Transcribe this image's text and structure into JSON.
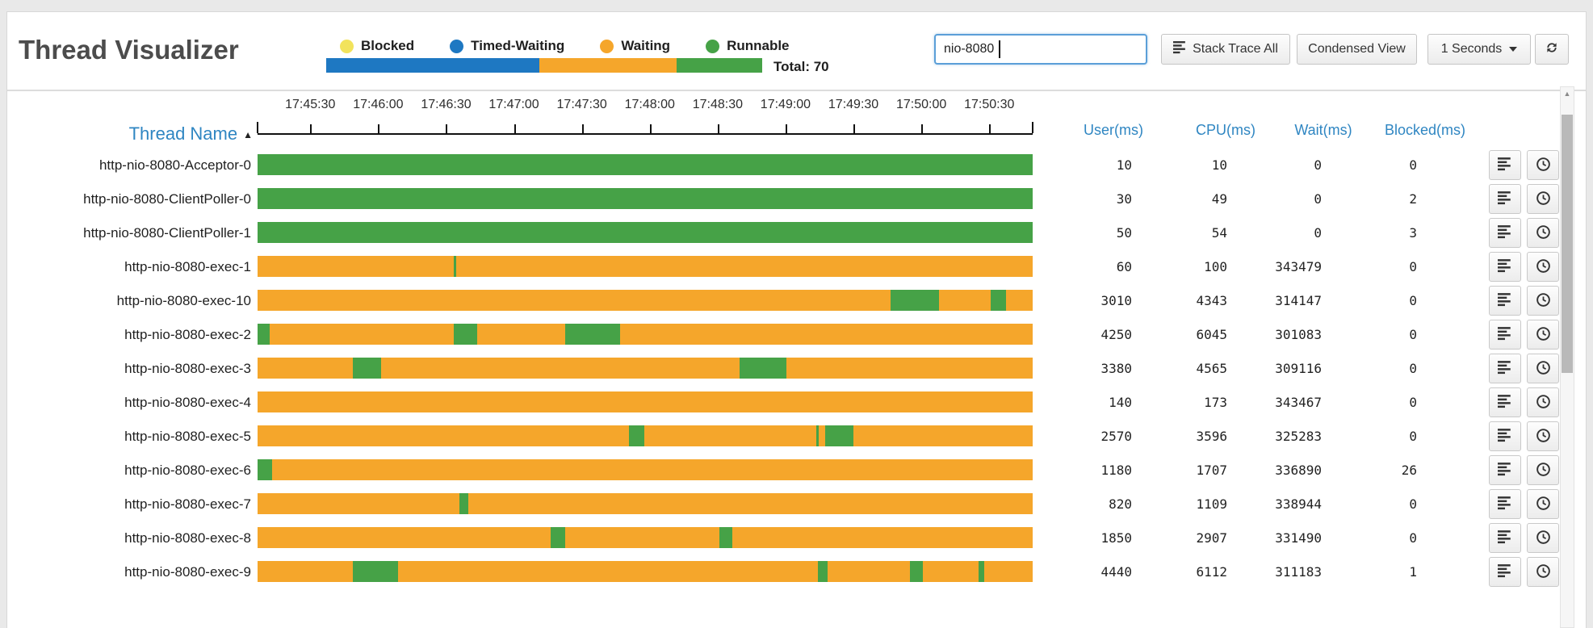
{
  "app": {
    "title": "Thread Visualizer"
  },
  "legend": {
    "items": [
      {
        "label": "Blocked",
        "color": "#f2e35c"
      },
      {
        "label": "Timed-Waiting",
        "color": "#1e78c2"
      },
      {
        "label": "Waiting",
        "color": "#f5a62b"
      },
      {
        "label": "Runnable",
        "color": "#46a247"
      }
    ],
    "distribution_bar": {
      "segments": [
        {
          "state": "Timed-Waiting",
          "color": "#1e78c2",
          "percent": 48.9
        },
        {
          "state": "Waiting",
          "color": "#f5a62b",
          "percent": 31.5
        },
        {
          "state": "Runnable",
          "color": "#46a247",
          "percent": 19.6
        }
      ]
    },
    "total_label": "Total: 70"
  },
  "toolbar": {
    "search": {
      "value": "nio-8080"
    },
    "buttons": {
      "stack_trace_all": "Stack Trace All",
      "condensed_view": "Condensed View",
      "interval": "1 Seconds"
    },
    "icons": [
      "align-left-icon",
      "caret-down-icon",
      "refresh-icon"
    ]
  },
  "timeline": {
    "tick_labels": [
      "17:45:30",
      "17:46:00",
      "17:46:30",
      "17:47:00",
      "17:47:30",
      "17:48:00",
      "17:48:30",
      "17:49:00",
      "17:49:30",
      "17:50:00",
      "17:50:30"
    ],
    "first_tick_percent": 6.8,
    "tick_spacing_percent": 8.76
  },
  "table": {
    "thread_name_header": "Thread Name",
    "sort_indicator": "ascending",
    "columns": [
      "User(ms)",
      "CPU(ms)",
      "Wait(ms)",
      "Blocked(ms)"
    ],
    "state_colors": {
      "runnable": "#46a247",
      "waiting": "#f5a62b"
    },
    "rows": [
      {
        "name": "http-nio-8080-Acceptor-0",
        "base_state": "runnable",
        "green_segments": [],
        "user": "10",
        "cpu": "10",
        "wait": "0",
        "blocked": "0"
      },
      {
        "name": "http-nio-8080-ClientPoller-0",
        "base_state": "runnable",
        "green_segments": [],
        "user": "30",
        "cpu": "49",
        "wait": "0",
        "blocked": "2"
      },
      {
        "name": "http-nio-8080-ClientPoller-1",
        "base_state": "runnable",
        "green_segments": [],
        "user": "50",
        "cpu": "54",
        "wait": "0",
        "blocked": "3"
      },
      {
        "name": "http-nio-8080-exec-1",
        "base_state": "waiting",
        "green_segments": [
          [
            25.3,
            25.6
          ]
        ],
        "user": "60",
        "cpu": "100",
        "wait": "343479",
        "blocked": "0"
      },
      {
        "name": "http-nio-8080-exec-10",
        "base_state": "waiting",
        "green_segments": [
          [
            81.7,
            87.9
          ],
          [
            94.6,
            96.6
          ]
        ],
        "user": "3010",
        "cpu": "4343",
        "wait": "314147",
        "blocked": "0"
      },
      {
        "name": "http-nio-8080-exec-2",
        "base_state": "waiting",
        "green_segments": [
          [
            0,
            1.6
          ],
          [
            25.3,
            28.3
          ],
          [
            39.7,
            46.8
          ]
        ],
        "user": "4250",
        "cpu": "6045",
        "wait": "301083",
        "blocked": "0"
      },
      {
        "name": "http-nio-8080-exec-3",
        "base_state": "waiting",
        "green_segments": [
          [
            12.3,
            15.9
          ],
          [
            62.2,
            68.2
          ]
        ],
        "user": "3380",
        "cpu": "4565",
        "wait": "309116",
        "blocked": "0"
      },
      {
        "name": "http-nio-8080-exec-4",
        "base_state": "waiting",
        "green_segments": [],
        "user": "140",
        "cpu": "173",
        "wait": "343467",
        "blocked": "0"
      },
      {
        "name": "http-nio-8080-exec-5",
        "base_state": "waiting",
        "green_segments": [
          [
            47.9,
            49.9
          ],
          [
            72.1,
            72.4
          ],
          [
            73.2,
            76.9
          ]
        ],
        "user": "2570",
        "cpu": "3596",
        "wait": "325283",
        "blocked": "0"
      },
      {
        "name": "http-nio-8080-exec-6",
        "base_state": "waiting",
        "green_segments": [
          [
            0,
            1.9
          ]
        ],
        "user": "1180",
        "cpu": "1707",
        "wait": "336890",
        "blocked": "26"
      },
      {
        "name": "http-nio-8080-exec-7",
        "base_state": "waiting",
        "green_segments": [
          [
            26.0,
            27.2
          ]
        ],
        "user": "820",
        "cpu": "1109",
        "wait": "338944",
        "blocked": "0"
      },
      {
        "name": "http-nio-8080-exec-8",
        "base_state": "waiting",
        "green_segments": [
          [
            37.8,
            39.7
          ],
          [
            59.6,
            61.2
          ]
        ],
        "user": "1850",
        "cpu": "2907",
        "wait": "331490",
        "blocked": "0"
      },
      {
        "name": "http-nio-8080-exec-9",
        "base_state": "waiting",
        "green_segments": [
          [
            12.3,
            18.1
          ],
          [
            72.3,
            73.5
          ],
          [
            84.2,
            85.8
          ],
          [
            93.0,
            93.7
          ]
        ],
        "user": "4440",
        "cpu": "6112",
        "wait": "311183",
        "blocked": "1"
      }
    ]
  }
}
